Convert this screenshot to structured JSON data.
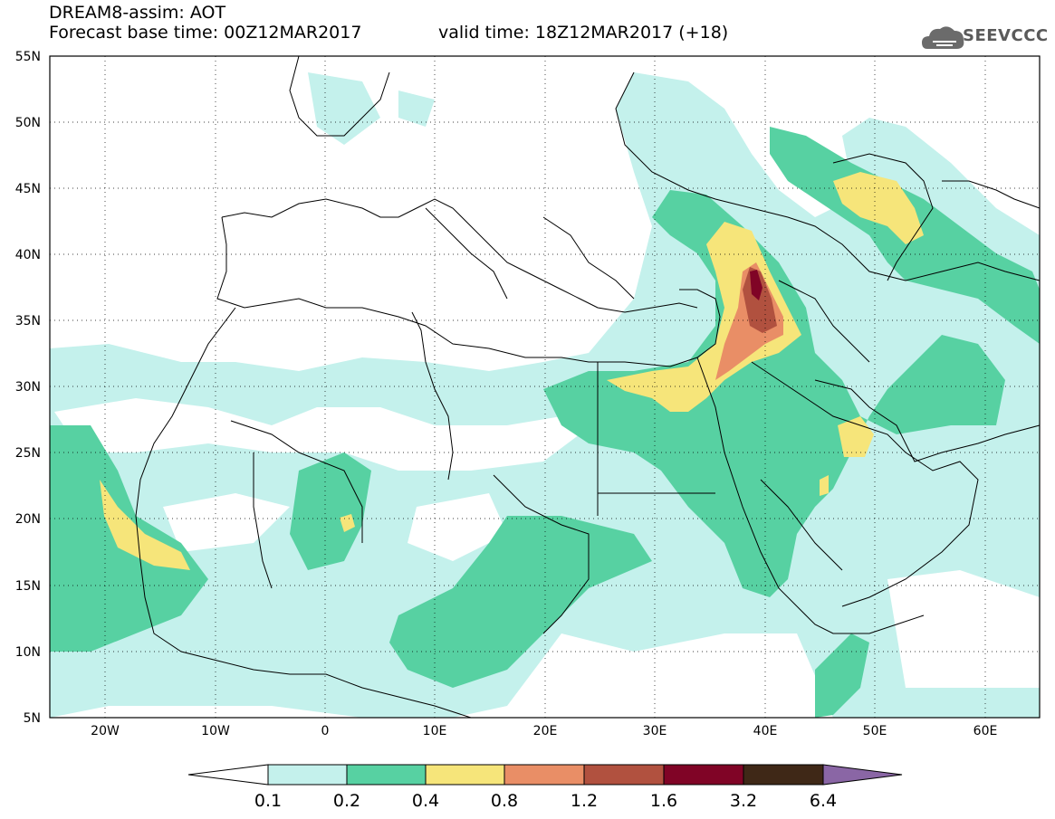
{
  "header": {
    "title": "DREAM8-assim: AOT",
    "base_time": "Forecast base time: 00Z12MAR2017",
    "valid_time": "valid time: 18Z12MAR2017 (+18)",
    "logo": "SEEVCCC"
  },
  "map": {
    "lon_range": [
      -25,
      65
    ],
    "lat_range": [
      5,
      55
    ],
    "lat_labels": [
      "55N",
      "50N",
      "45N",
      "40N",
      "35N",
      "30N",
      "25N",
      "20N",
      "15N",
      "10N",
      "5N"
    ],
    "lon_labels": [
      "20W",
      "10W",
      "0",
      "10E",
      "20E",
      "30E",
      "40E",
      "50E",
      "60E"
    ]
  },
  "colorbar": {
    "colors": [
      "#c4f1ec",
      "#57d1a2",
      "#f6e57a",
      "#e98e66",
      "#b1513f",
      "#800426",
      "#3f2817",
      "#8a66a5"
    ],
    "labels": [
      "0.1",
      "0.2",
      "0.4",
      "0.8",
      "1.2",
      "1.6",
      "3.2",
      "6.4"
    ]
  }
}
